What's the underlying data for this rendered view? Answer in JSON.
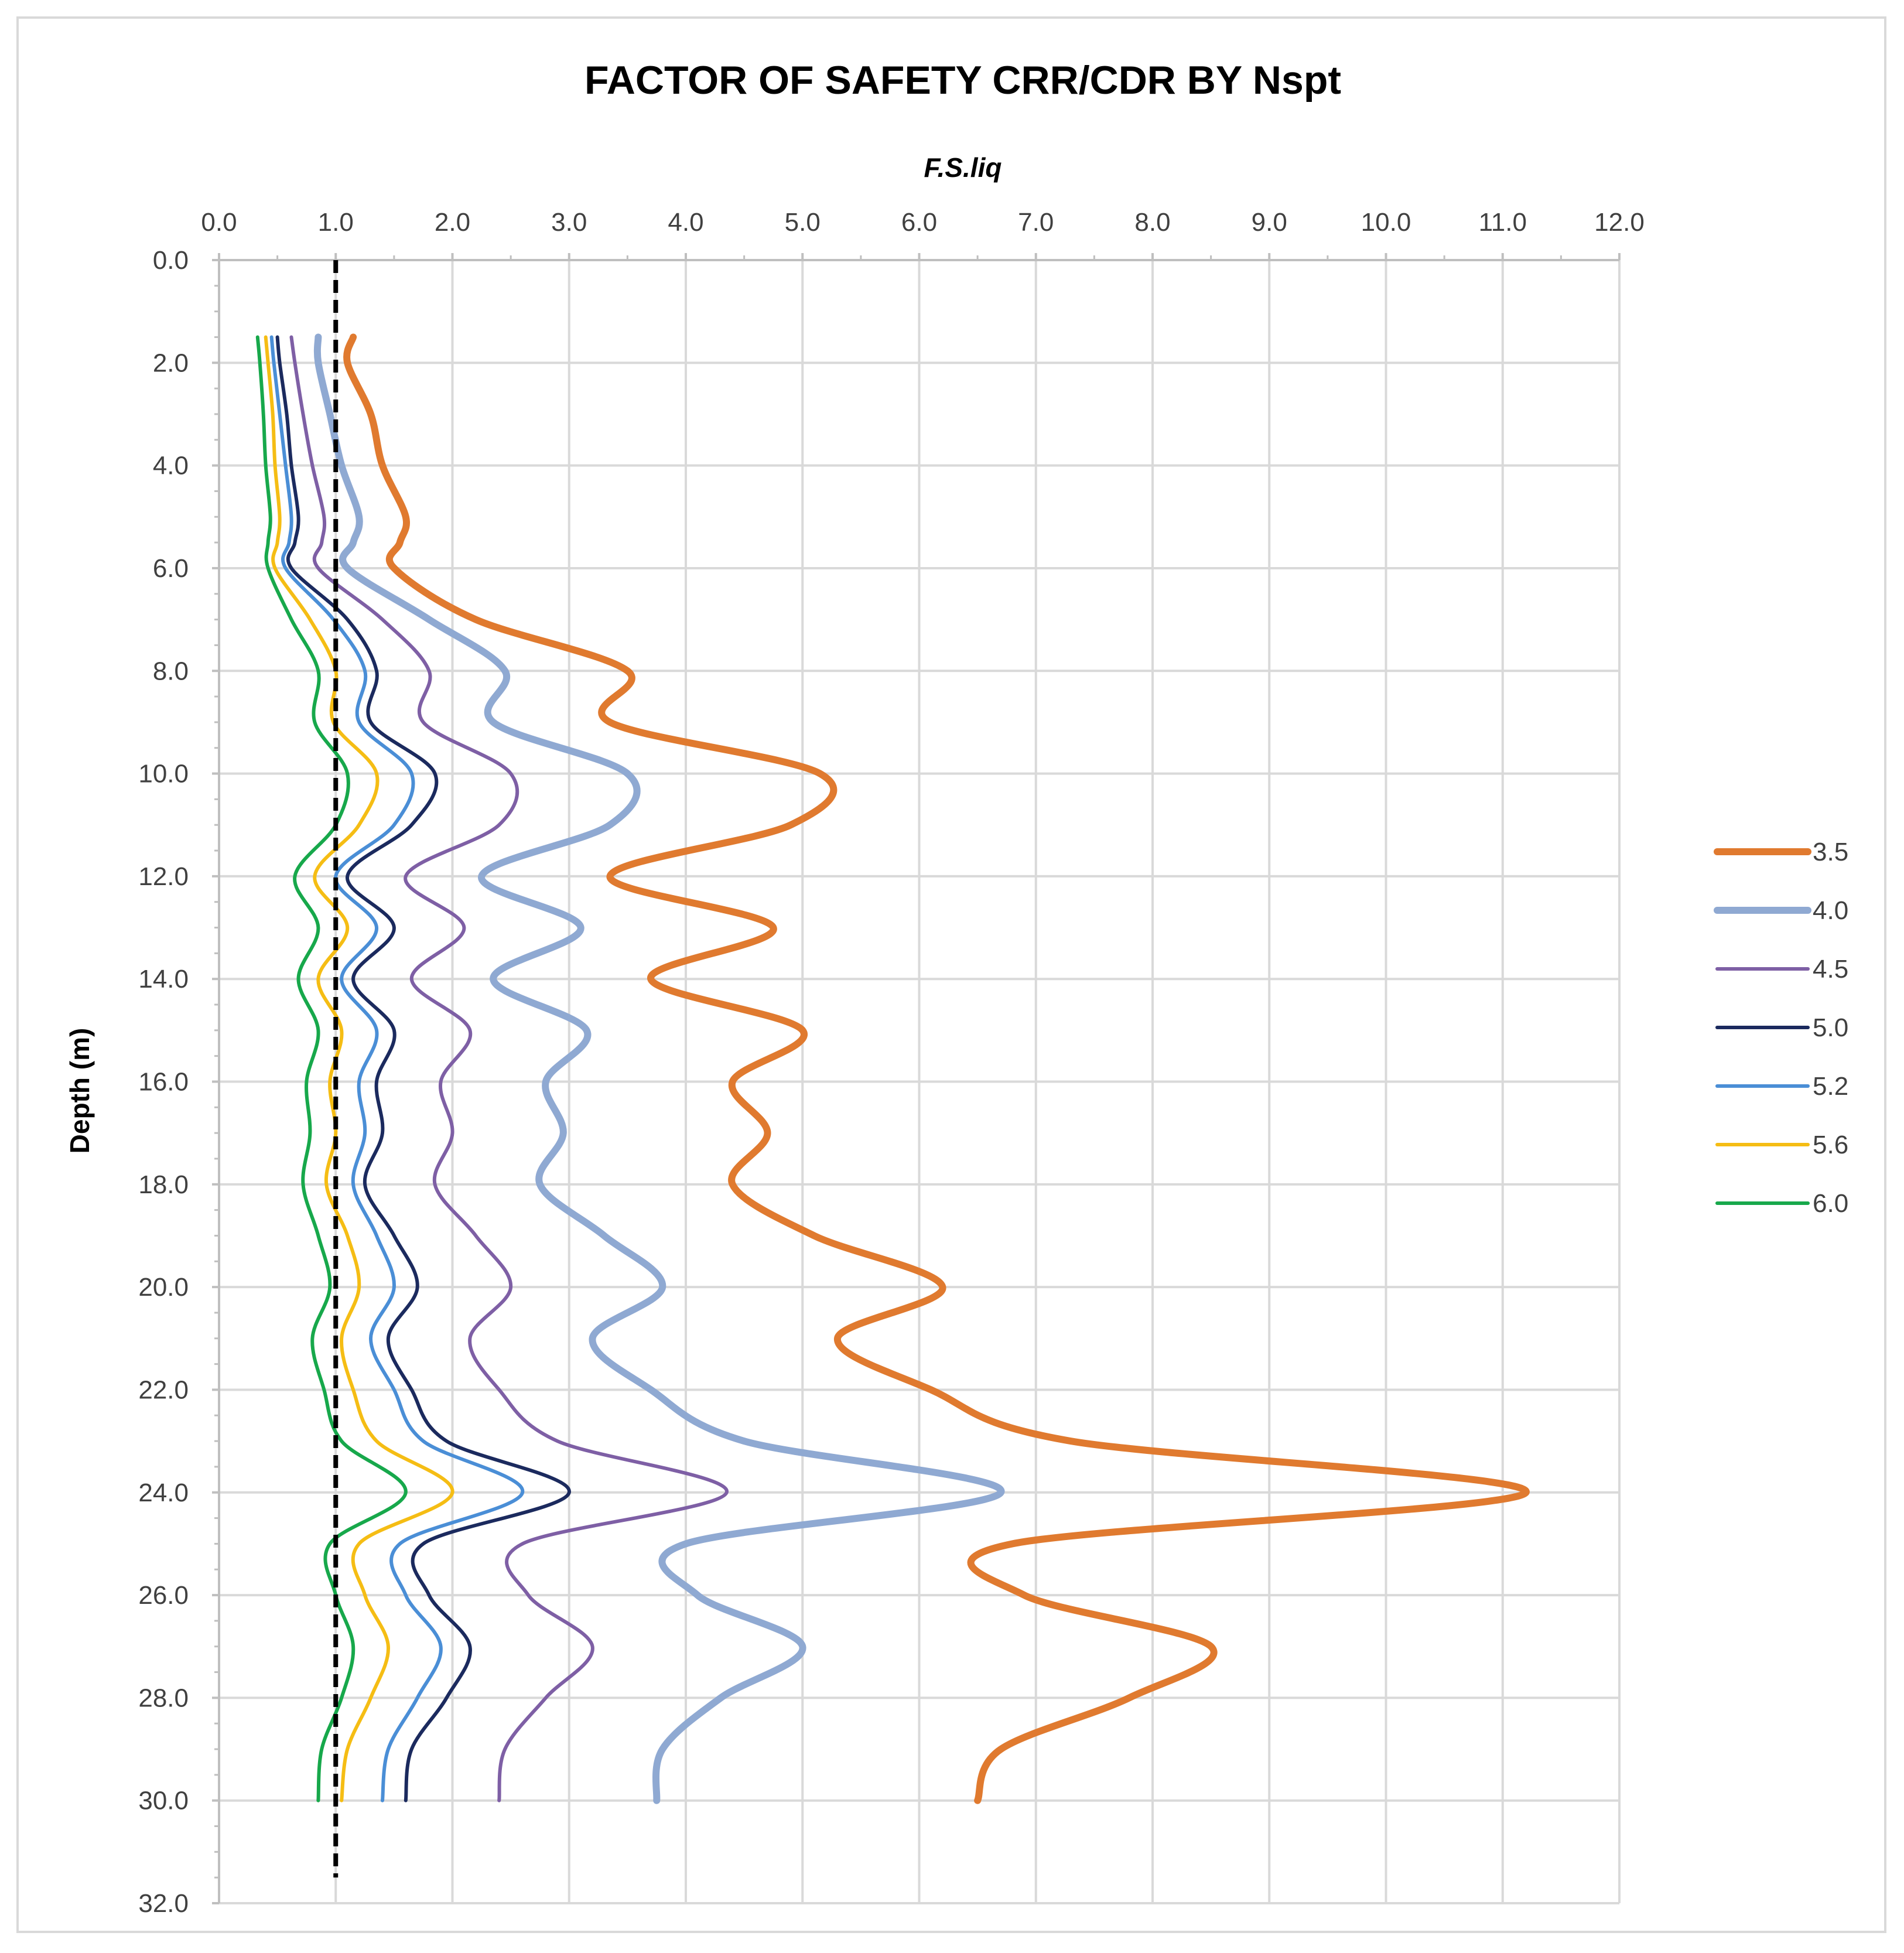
{
  "chart_data": {
    "type": "line",
    "title": "FACTOR OF SAFETY CRR/CDR BY Nspt",
    "xlabel": "F.S.liq",
    "ylabel": "Depth  (m)",
    "x_axis_position": "top",
    "y_axis_inverted": true,
    "xlim": [
      0,
      12
    ],
    "ylim": [
      0,
      32
    ],
    "x_ticks": [
      "0.0",
      "1.0",
      "2.0",
      "3.0",
      "4.0",
      "5.0",
      "6.0",
      "7.0",
      "8.0",
      "9.0",
      "10.0",
      "11.0",
      "12.0"
    ],
    "y_ticks": [
      "0.0",
      "2.0",
      "4.0",
      "6.0",
      "8.0",
      "10.0",
      "12.0",
      "14.0",
      "16.0",
      "18.0",
      "20.0",
      "22.0",
      "24.0",
      "26.0",
      "28.0",
      "30.0",
      "32.0"
    ],
    "grid": true,
    "legend_position": "right",
    "reference_line": {
      "x": 1.0,
      "style": "dashed",
      "color": "#000000",
      "y_range": [
        0,
        31.5
      ]
    },
    "depths": [
      1.5,
      2,
      3,
      4,
      5,
      5.5,
      6,
      7,
      8,
      9,
      10,
      11,
      12,
      13,
      14,
      15,
      16,
      17,
      18,
      19,
      20,
      21,
      22,
      23,
      24,
      25,
      26,
      27,
      28,
      29,
      30
    ],
    "series": [
      {
        "name": "3.5",
        "color": "#E07A2F",
        "width": 12,
        "values": [
          1.15,
          1.1,
          1.3,
          1.4,
          1.6,
          1.55,
          1.5,
          2.2,
          3.5,
          3.35,
          5.15,
          4.9,
          3.35,
          4.75,
          3.7,
          5.0,
          4.4,
          4.7,
          4.4,
          5.1,
          6.2,
          5.3,
          6.1,
          7.3,
          11.2,
          6.8,
          6.9,
          8.5,
          7.8,
          6.7,
          6.5
        ]
      },
      {
        "name": "4.0",
        "color": "#8FA9D2",
        "width": 12,
        "values": [
          0.85,
          0.85,
          0.95,
          1.05,
          1.2,
          1.15,
          1.1,
          1.8,
          2.45,
          2.35,
          3.5,
          3.35,
          2.25,
          3.1,
          2.35,
          3.15,
          2.8,
          2.95,
          2.75,
          3.3,
          3.8,
          3.2,
          3.7,
          4.5,
          6.7,
          4.0,
          4.1,
          5.0,
          4.3,
          3.8,
          3.75
        ]
      },
      {
        "name": "4.5",
        "color": "#7E5FA5",
        "width": 6,
        "values": [
          0.62,
          0.65,
          0.72,
          0.8,
          0.9,
          0.88,
          0.85,
          1.4,
          1.8,
          1.75,
          2.5,
          2.4,
          1.6,
          2.1,
          1.65,
          2.15,
          1.9,
          2.0,
          1.85,
          2.2,
          2.5,
          2.15,
          2.4,
          2.9,
          4.35,
          2.6,
          2.65,
          3.2,
          2.8,
          2.45,
          2.4
        ]
      },
      {
        "name": "5.0",
        "color": "#1B2A5E",
        "width": 6,
        "values": [
          0.5,
          0.52,
          0.58,
          0.62,
          0.68,
          0.65,
          0.62,
          1.1,
          1.35,
          1.3,
          1.85,
          1.65,
          1.1,
          1.5,
          1.15,
          1.5,
          1.35,
          1.4,
          1.25,
          1.5,
          1.7,
          1.45,
          1.65,
          1.95,
          3.0,
          1.75,
          1.8,
          2.15,
          1.95,
          1.65,
          1.6
        ]
      },
      {
        "name": "5.2",
        "color": "#4A8ED6",
        "width": 6,
        "values": [
          0.45,
          0.47,
          0.52,
          0.57,
          0.62,
          0.6,
          0.57,
          0.98,
          1.25,
          1.2,
          1.65,
          1.5,
          1.0,
          1.35,
          1.05,
          1.35,
          1.2,
          1.25,
          1.15,
          1.35,
          1.5,
          1.3,
          1.5,
          1.75,
          2.6,
          1.55,
          1.6,
          1.9,
          1.7,
          1.45,
          1.4
        ]
      },
      {
        "name": "5.6",
        "color": "#F5BD14",
        "width": 6,
        "values": [
          0.4,
          0.42,
          0.46,
          0.48,
          0.52,
          0.5,
          0.48,
          0.78,
          1.0,
          0.98,
          1.35,
          1.2,
          0.82,
          1.1,
          0.85,
          1.05,
          0.95,
          1.0,
          0.92,
          1.1,
          1.2,
          1.05,
          1.15,
          1.35,
          2.0,
          1.2,
          1.25,
          1.45,
          1.3,
          1.1,
          1.05
        ]
      },
      {
        "name": "6.0",
        "color": "#17A84B",
        "width": 6,
        "values": [
          0.33,
          0.35,
          0.38,
          0.4,
          0.44,
          0.42,
          0.42,
          0.62,
          0.85,
          0.82,
          1.1,
          1.0,
          0.65,
          0.85,
          0.68,
          0.85,
          0.75,
          0.78,
          0.72,
          0.85,
          0.95,
          0.8,
          0.9,
          1.05,
          1.6,
          0.95,
          1.0,
          1.15,
          1.05,
          0.88,
          0.85
        ]
      }
    ]
  }
}
